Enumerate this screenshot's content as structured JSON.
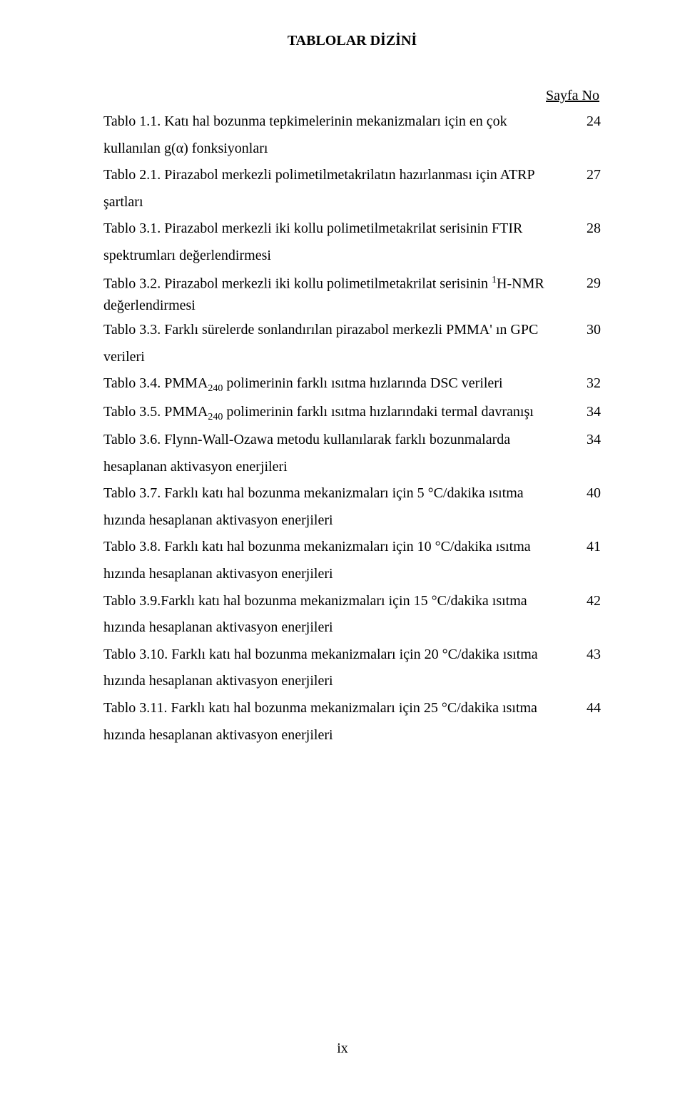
{
  "page": {
    "title": "TABLOLAR DİZİNİ",
    "pageno_label": "Sayfa No",
    "footer": "ix"
  },
  "entries": {
    "e1": {
      "line1": "Tablo 1.1. Katı hal bozunma tepkimelerinin mekanizmaları için en çok",
      "num": "24",
      "line2": "kullanılan g(α)  fonksiyonları"
    },
    "e2": {
      "line1": "Tablo 2.1. Pirazabol merkezli polimetilmetakrilatın hazırlanması için ATRP",
      "num": "27",
      "line2": "şartları"
    },
    "e3": {
      "line1": "Tablo 3.1. Pirazabol merkezli iki kollu polimetilmetakrilat serisinin FTIR",
      "num": "28",
      "line2": "spektrumları değerlendirmesi"
    },
    "e4": {
      "line1_pre": "Tablo 3.2. Pirazabol merkezli iki kollu polimetilmetakrilat serisinin ",
      "line1_sup": "1",
      "line1_post": "H-NMR",
      "num": "29",
      "line2": "değerlendirmesi"
    },
    "e5": {
      "line1": "Tablo 3.3. Farklı sürelerde sonlandırılan pirazabol merkezli PMMA' ın GPC",
      "num": "30",
      "line2": "verileri"
    },
    "e6": {
      "pre": "Tablo 3.4. PMMA",
      "sub": "240",
      "post": " polimerinin farklı ısıtma hızlarında DSC verileri",
      "num": "32"
    },
    "e7": {
      "pre": "Tablo 3.5. PMMA",
      "sub": "240",
      "post": " polimerinin farklı ısıtma hızlarındaki termal davranışı",
      "num": "34"
    },
    "e8": {
      "line1": "Tablo  3.6.  Flynn-Wall-Ozawa  metodu  kullanılarak  farklı  bozunmalarda",
      "num": "34",
      "line2": "hesaplanan aktivasyon enerjileri"
    },
    "e9": {
      "line1": "Tablo 3.7.  Farklı katı hal bozunma mekanizmaları için 5 °C/dakika ısıtma",
      "num": "40",
      "line2": "hızında hesaplanan aktivasyon enerjileri"
    },
    "e10": {
      "line1": "Tablo 3.8. Farklı katı hal bozunma mekanizmaları için 10 °C/dakika ısıtma",
      "num": "41",
      "line2": "hızında hesaplanan aktivasyon enerjileri"
    },
    "e11": {
      "line1": "Tablo 3.9.Farklı katı hal bozunma mekanizmaları için 15 °C/dakika ısıtma",
      "num": "42",
      "line2": "hızında hesaplanan aktivasyon enerjileri"
    },
    "e12": {
      "line1": "Tablo 3.10. Farklı katı hal bozunma mekanizmaları için 20 °C/dakika ısıtma",
      "num": "43",
      "line2": "hızında hesaplanan aktivasyon enerjileri"
    },
    "e13": {
      "line1": "Tablo 3.11. Farklı katı hal bozunma mekanizmaları için 25 °C/dakika ısıtma",
      "num": "44",
      "line2": "hızında hesaplanan aktivasyon enerjileri"
    }
  }
}
